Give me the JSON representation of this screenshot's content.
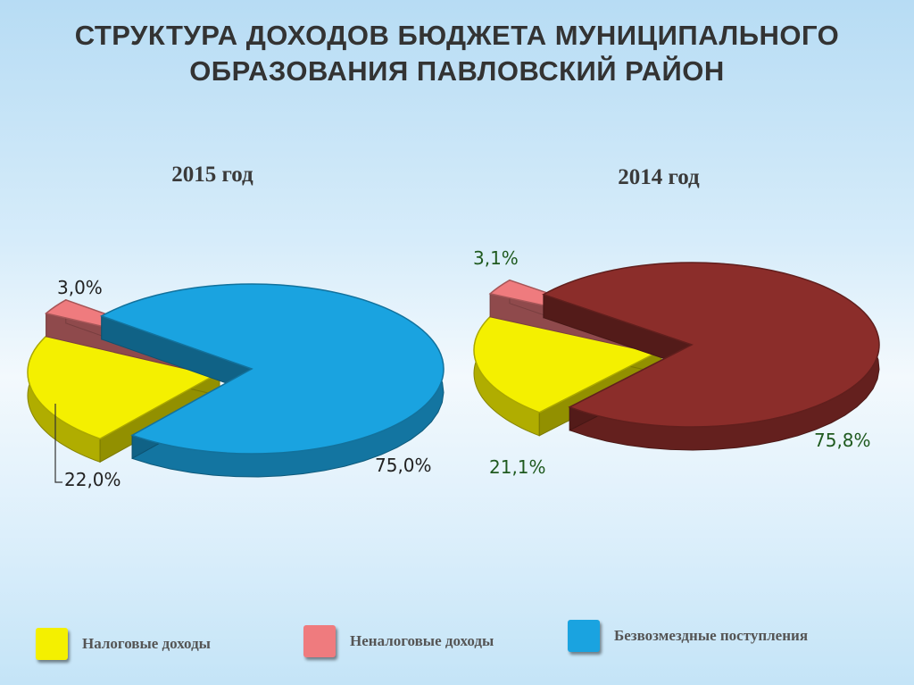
{
  "title_line1": "СТРУКТУРА  ДОХОДОВ БЮДЖЕТА МУНИЦИПАЛЬНОГО",
  "title_line2": "ОБРАЗОВАНИЯ ПАВЛОВСКИЙ РАЙОН",
  "colors": {
    "tax": "#f4f000",
    "nontax": "#ef7b7e",
    "grants_2015": "#1aa3e0",
    "grants_2014": "#8b2d2a"
  },
  "chart_data": [
    {
      "type": "pie",
      "title": "2015 год",
      "categories": [
        "Налоговые доходы",
        "Неналоговые доходы",
        "Безвозмездные поступления"
      ],
      "values": [
        22.0,
        3.0,
        75.0
      ],
      "data_labels": [
        "22,0%",
        "3,0%",
        "75,0%"
      ],
      "legend": "bottom"
    },
    {
      "type": "pie",
      "title": "2014 год",
      "categories": [
        "Налоговые доходы",
        "Неналоговые доходы",
        "Безвозмездные поступления"
      ],
      "values": [
        21.1,
        3.1,
        75.8
      ],
      "data_labels": [
        "21,1%",
        "3,1%",
        "75,8%"
      ],
      "legend": "bottom"
    }
  ],
  "legend": [
    {
      "label": "Налоговые доходы",
      "color": "#f4f000"
    },
    {
      "label": "Неналоговые доходы",
      "color": "#ef7b7e"
    },
    {
      "label": "Безвозмездные поступления",
      "color": "#1aa3e0"
    }
  ]
}
